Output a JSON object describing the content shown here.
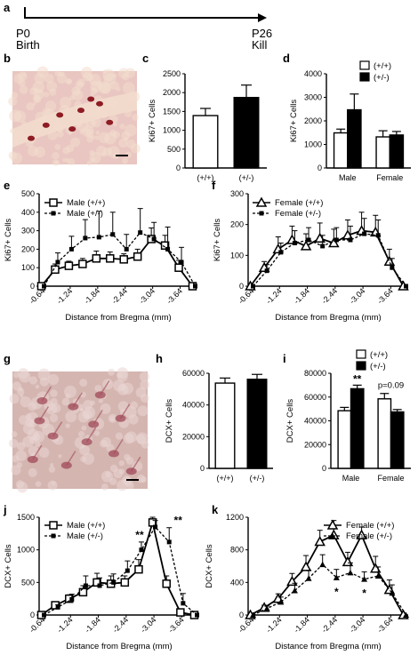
{
  "timeline": {
    "start_label": "P0",
    "start_sub": "Birth",
    "end_label": "P26",
    "end_sub": "Kill"
  },
  "panel_letters": [
    "a",
    "b",
    "c",
    "d",
    "e",
    "f",
    "g",
    "h",
    "i",
    "j",
    "k"
  ],
  "micrographs": {
    "b": {
      "palette": "ki67",
      "colors": {
        "bg": "#e9c6c1",
        "band": "#f2dccd",
        "cell": "#8e1c24"
      }
    },
    "g": {
      "palette": "dcx",
      "colors": {
        "bg": "#d4b5b0",
        "band": "#ead6d4",
        "cell": "#a04a58"
      }
    }
  },
  "chart_data": [
    {
      "id": "c",
      "type": "bar",
      "categories": [
        "(+/+)",
        "(+/-)"
      ],
      "values": [
        1390,
        1870
      ],
      "errors": [
        190,
        330
      ],
      "fills": [
        "#ffffff",
        "#000000"
      ],
      "ylabel": "Ki67+ Cells",
      "ylim": [
        0,
        2500
      ],
      "yticks": [
        0,
        500,
        1000,
        1500,
        2000,
        2500
      ]
    },
    {
      "id": "d",
      "type": "bar",
      "categories": [
        "Male",
        "Female"
      ],
      "series": [
        {
          "name": "(+/+)",
          "fill": "#ffffff",
          "values": [
            1490,
            1320
          ],
          "errors": [
            160,
            260
          ]
        },
        {
          "name": "(+/-)",
          "fill": "#000000",
          "values": [
            2470,
            1400
          ],
          "errors": [
            670,
            150
          ]
        }
      ],
      "ylabel": "Ki67+ Cells",
      "ylim": [
        0,
        4000
      ],
      "yticks": [
        0,
        1000,
        2000,
        3000,
        4000
      ],
      "legend": "top-right"
    },
    {
      "id": "e",
      "type": "line",
      "x": [
        -0.64,
        -0.94,
        -1.24,
        -1.54,
        -1.84,
        -2.14,
        -2.44,
        -2.74,
        -3.04,
        -3.34,
        -3.64,
        -3.94
      ],
      "xticks": [
        "-0.64",
        "-1.24",
        "-1.84",
        "-2.44",
        "-3.04",
        "-3.64"
      ],
      "series": [
        {
          "name": "Male (+/+)",
          "marker": "square",
          "dash": false,
          "values": [
            0,
            90,
            110,
            120,
            150,
            150,
            145,
            160,
            255,
            220,
            100,
            0
          ],
          "errors": [
            0,
            30,
            25,
            30,
            40,
            35,
            30,
            40,
            60,
            55,
            40,
            0
          ]
        },
        {
          "name": "Male (+/-)",
          "marker": "dot",
          "dash": true,
          "values": [
            0,
            130,
            200,
            260,
            265,
            280,
            200,
            290,
            255,
            200,
            130,
            0
          ],
          "errors": [
            0,
            50,
            70,
            100,
            140,
            120,
            80,
            130,
            90,
            120,
            80,
            0
          ]
        }
      ],
      "ylabel": "Ki67+ Cells",
      "xlabel": "Distance from Bregma (mm)",
      "ylim": [
        0,
        500
      ],
      "yticks": [
        0,
        100,
        200,
        300,
        400,
        500
      ],
      "legend": "top-left"
    },
    {
      "id": "f",
      "type": "line",
      "x": [
        -0.64,
        -0.94,
        -1.24,
        -1.54,
        -1.84,
        -2.14,
        -2.44,
        -2.74,
        -3.04,
        -3.34,
        -3.64,
        -3.94
      ],
      "xticks": [
        "-0.64",
        "-1.24",
        "-1.84",
        "-2.44",
        "-3.04",
        "-3.64"
      ],
      "series": [
        {
          "name": "Female (+/+)",
          "marker": "triangle-open",
          "dash": false,
          "values": [
            0,
            60,
            120,
            150,
            130,
            155,
            140,
            165,
            180,
            175,
            80,
            0
          ],
          "errors": [
            0,
            20,
            40,
            45,
            40,
            50,
            45,
            50,
            60,
            55,
            40,
            0
          ]
        },
        {
          "name": "Female (+/-)",
          "marker": "dot",
          "dash": true,
          "values": [
            0,
            50,
            110,
            140,
            150,
            130,
            150,
            150,
            170,
            165,
            60,
            0
          ],
          "errors": [
            0,
            20,
            30,
            40,
            40,
            35,
            40,
            45,
            50,
            50,
            30,
            0
          ]
        }
      ],
      "ylabel": "Ki67+ Cells",
      "xlabel": "Distance from Bregma (mm)",
      "ylim": [
        0,
        300
      ],
      "yticks": [
        0,
        100,
        200,
        300
      ],
      "legend": "top-left"
    },
    {
      "id": "h",
      "type": "bar",
      "categories": [
        "(+/+)",
        "(+/-)"
      ],
      "values": [
        53800,
        56200
      ],
      "errors": [
        3200,
        3100
      ],
      "fills": [
        "#ffffff",
        "#000000"
      ],
      "ylabel": "DCX+ Cells",
      "ylim": [
        0,
        60000
      ],
      "yticks": [
        0,
        20000,
        40000,
        60000
      ]
    },
    {
      "id": "i",
      "type": "bar",
      "categories": [
        "Male",
        "Female"
      ],
      "series": [
        {
          "name": "(+/+)",
          "fill": "#ffffff",
          "values": [
            48500,
            58500
          ],
          "errors": [
            2800,
            4500
          ]
        },
        {
          "name": "(+/-)",
          "fill": "#000000",
          "values": [
            67000,
            47500
          ],
          "errors": [
            3000,
            2000
          ]
        }
      ],
      "annotations": [
        "**",
        "p=0.09"
      ],
      "ylabel": "DCX+ Cells",
      "ylim": [
        0,
        80000
      ],
      "yticks": [
        0,
        20000,
        40000,
        60000,
        80000
      ],
      "legend": "top-right"
    },
    {
      "id": "j",
      "type": "line",
      "x": [
        -0.64,
        -0.94,
        -1.24,
        -1.54,
        -1.84,
        -2.14,
        -2.44,
        -2.74,
        -3.04,
        -3.34,
        -3.64,
        -3.94
      ],
      "xticks": [
        "-0.64",
        "-1.24",
        "-1.84",
        "-2.44",
        "-3.04",
        "-3.64"
      ],
      "series": [
        {
          "name": "Male (+/+)",
          "marker": "square",
          "dash": false,
          "values": [
            0,
            150,
            250,
            350,
            500,
            480,
            500,
            700,
            1420,
            480,
            40,
            0
          ],
          "errors": [
            0,
            40,
            60,
            100,
            140,
            120,
            100,
            150,
            80,
            120,
            40,
            0
          ]
        },
        {
          "name": "Male (+/-)",
          "marker": "dot",
          "dash": true,
          "values": [
            0,
            120,
            240,
            450,
            450,
            500,
            680,
            1000,
            1350,
            1120,
            180,
            0
          ],
          "errors": [
            0,
            40,
            80,
            150,
            120,
            130,
            150,
            120,
            100,
            220,
            150,
            0
          ]
        }
      ],
      "annotations": [
        "**",
        "**"
      ],
      "ylabel": "DCX+ Cells",
      "xlabel": "Distance from Bregma (mm)",
      "ylim": [
        0,
        1500
      ],
      "yticks": [
        0,
        500,
        1000,
        1500
      ],
      "legend": "top-left"
    },
    {
      "id": "k",
      "type": "line",
      "x": [
        -0.64,
        -0.94,
        -1.24,
        -1.54,
        -1.84,
        -2.14,
        -2.44,
        -2.74,
        -3.04,
        -3.34,
        -3.64,
        -3.94
      ],
      "xticks": [
        "-0.64",
        "-1.24",
        "-1.84",
        "-2.44",
        "-3.04",
        "-3.64"
      ],
      "series": [
        {
          "name": "Female (+/+)",
          "marker": "triangle-open",
          "dash": false,
          "values": [
            0,
            90,
            200,
            410,
            590,
            900,
            980,
            650,
            980,
            570,
            310,
            0
          ],
          "errors": [
            0,
            30,
            60,
            100,
            140,
            140,
            180,
            120,
            100,
            150,
            120,
            0
          ]
        },
        {
          "name": "Female (+/-)",
          "marker": "triangle",
          "dash": true,
          "values": [
            0,
            80,
            160,
            300,
            450,
            620,
            460,
            520,
            440,
            480,
            270,
            0
          ],
          "errors": [
            0,
            30,
            60,
            90,
            100,
            120,
            100,
            120,
            90,
            110,
            100,
            0
          ]
        }
      ],
      "annotations": [
        "*",
        "*"
      ],
      "ylabel": "DCX+ Cells",
      "xlabel": "Distance from Bregma (mm)",
      "ylim": [
        0,
        1200
      ],
      "yticks": [
        0,
        400,
        800,
        1200
      ],
      "legend": "top-right"
    }
  ]
}
